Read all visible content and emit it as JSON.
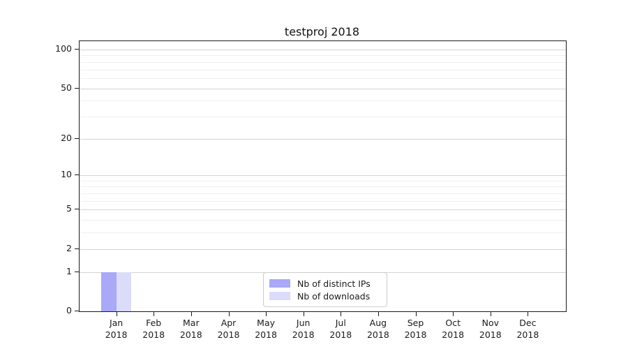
{
  "chart_data": {
    "type": "bar",
    "title": "testproj 2018",
    "categories": [
      "Jan\n2018",
      "Feb\n2018",
      "Mar\n2018",
      "Apr\n2018",
      "May\n2018",
      "Jun\n2018",
      "Jul\n2018",
      "Aug\n2018",
      "Sep\n2018",
      "Oct\n2018",
      "Nov\n2018",
      "Dec\n2018"
    ],
    "series": [
      {
        "name": "Nb of distinct IPs",
        "color": "#a9a9f8",
        "values": [
          1,
          0,
          0,
          0,
          0,
          0,
          0,
          0,
          0,
          0,
          0,
          0
        ]
      },
      {
        "name": "Nb of downloads",
        "color": "#dbdbfa",
        "values": [
          1,
          0,
          0,
          0,
          0,
          0,
          0,
          0,
          0,
          0,
          0,
          0
        ]
      }
    ],
    "yscale": "log1p",
    "yticks": [
      0,
      1,
      2,
      5,
      10,
      20,
      50,
      100
    ],
    "minor_yticks": [
      3,
      4,
      6,
      7,
      8,
      9,
      30,
      40,
      60,
      70,
      80,
      90
    ],
    "ylim": [
      0,
      116
    ],
    "grid": "horizontal",
    "legend_position": "lower-center-inside",
    "colors": {
      "major_grid": "#d4d4d4",
      "minor_grid": "#efefef",
      "axis": "#1a1a1a",
      "background": "#ffffff"
    }
  }
}
